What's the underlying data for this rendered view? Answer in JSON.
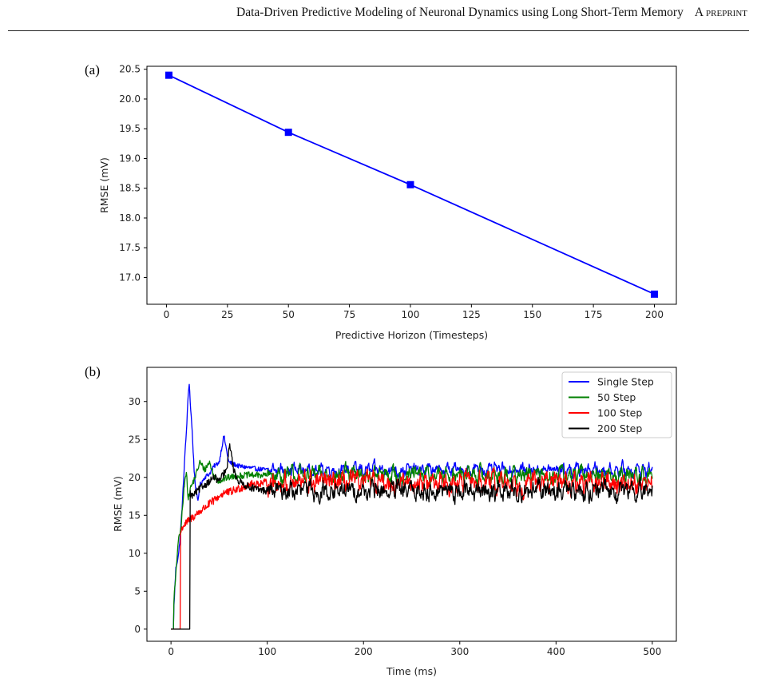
{
  "header": {
    "title": "Data-Driven Predictive Modeling of Neuronal Dynamics using Long Short-Term Memory",
    "tag": "A preprint"
  },
  "chart_data": [
    {
      "panel_label": "(a)",
      "type": "line",
      "xlabel": "Predictive Horizon (Timesteps)",
      "ylabel": "RMSE (mV)",
      "xlim": [
        -8,
        209
      ],
      "ylim": [
        16.55,
        20.55
      ],
      "xticks": [
        0,
        25,
        50,
        75,
        100,
        125,
        150,
        175,
        200
      ],
      "yticks": [
        17.0,
        17.5,
        18.0,
        18.5,
        19.0,
        19.5,
        20.0,
        20.5
      ],
      "series": [
        {
          "x": [
            1,
            50,
            100,
            200
          ],
          "y": [
            20.4,
            19.44,
            18.56,
            16.72
          ],
          "color": "#0000ff",
          "marker": "square"
        }
      ],
      "grid": false
    },
    {
      "panel_label": "(b)",
      "type": "line",
      "xlabel": "Time (ms)",
      "ylabel": "RMSE (mV)",
      "xlim": [
        -25,
        525
      ],
      "ylim": [
        -1.6,
        34.5
      ],
      "xticks": [
        0,
        100,
        200,
        300,
        400,
        500
      ],
      "yticks": [
        0,
        5,
        10,
        15,
        20,
        25,
        30
      ],
      "legend_position": "top-right",
      "grid": false,
      "series": [
        {
          "name": "Single Step",
          "color": "#0000ff",
          "steady_mean": 21.0,
          "noise_amp": 0.5,
          "x": [
            0,
            3,
            5,
            8,
            10,
            12,
            14,
            16,
            18,
            19,
            20,
            22,
            24,
            26,
            28,
            30,
            35,
            40,
            45,
            50,
            55,
            60,
            70,
            80,
            90,
            100
          ],
          "y": [
            0,
            3,
            8,
            10,
            13,
            17,
            22,
            26,
            31,
            32.5,
            30,
            26,
            21,
            18,
            17,
            19,
            20,
            20.5,
            21.5,
            22,
            25.5,
            22,
            21.5,
            21.3,
            21.1,
            21.0
          ]
        },
        {
          "name": "50 Step",
          "color": "#008000",
          "steady_mean": 20.3,
          "noise_amp": 0.7,
          "x": [
            0,
            3,
            5,
            7,
            9,
            10,
            12,
            14,
            16,
            18,
            20,
            25,
            30,
            35,
            40,
            45,
            50,
            60,
            70,
            80,
            90,
            100
          ],
          "y": [
            0,
            4,
            7,
            11,
            12.5,
            13,
            16,
            19,
            21,
            17,
            18.5,
            20,
            22,
            21,
            22,
            20,
            19.5,
            20,
            20.2,
            20.3,
            20.3,
            20.3
          ]
        },
        {
          "name": "100 Step",
          "color": "#ff0000",
          "steady_mean": 19.3,
          "noise_amp": 0.9,
          "x": [
            0,
            9.4,
            9.6,
            12,
            16,
            20,
            25,
            30,
            35,
            40,
            45,
            50,
            55,
            60,
            70,
            80,
            90,
            100
          ],
          "y": [
            0,
            0,
            12.5,
            13.5,
            14,
            14.5,
            15,
            15.5,
            16,
            16.5,
            17,
            17.5,
            18,
            18,
            18.5,
            19,
            19.2,
            19.3
          ]
        },
        {
          "name": "200 Step",
          "color": "#000000",
          "steady_mean": 18.2,
          "noise_amp": 0.8,
          "x": [
            0,
            19.5,
            19.7,
            22,
            26,
            30,
            35,
            40,
            45,
            50,
            55,
            58,
            61,
            65,
            70,
            80,
            90,
            100
          ],
          "y": [
            0,
            0,
            18,
            17.5,
            18,
            18.5,
            19,
            19.5,
            20,
            19.5,
            20.5,
            21,
            24.5,
            21,
            19.5,
            18.8,
            18.4,
            18.2
          ]
        }
      ]
    }
  ]
}
